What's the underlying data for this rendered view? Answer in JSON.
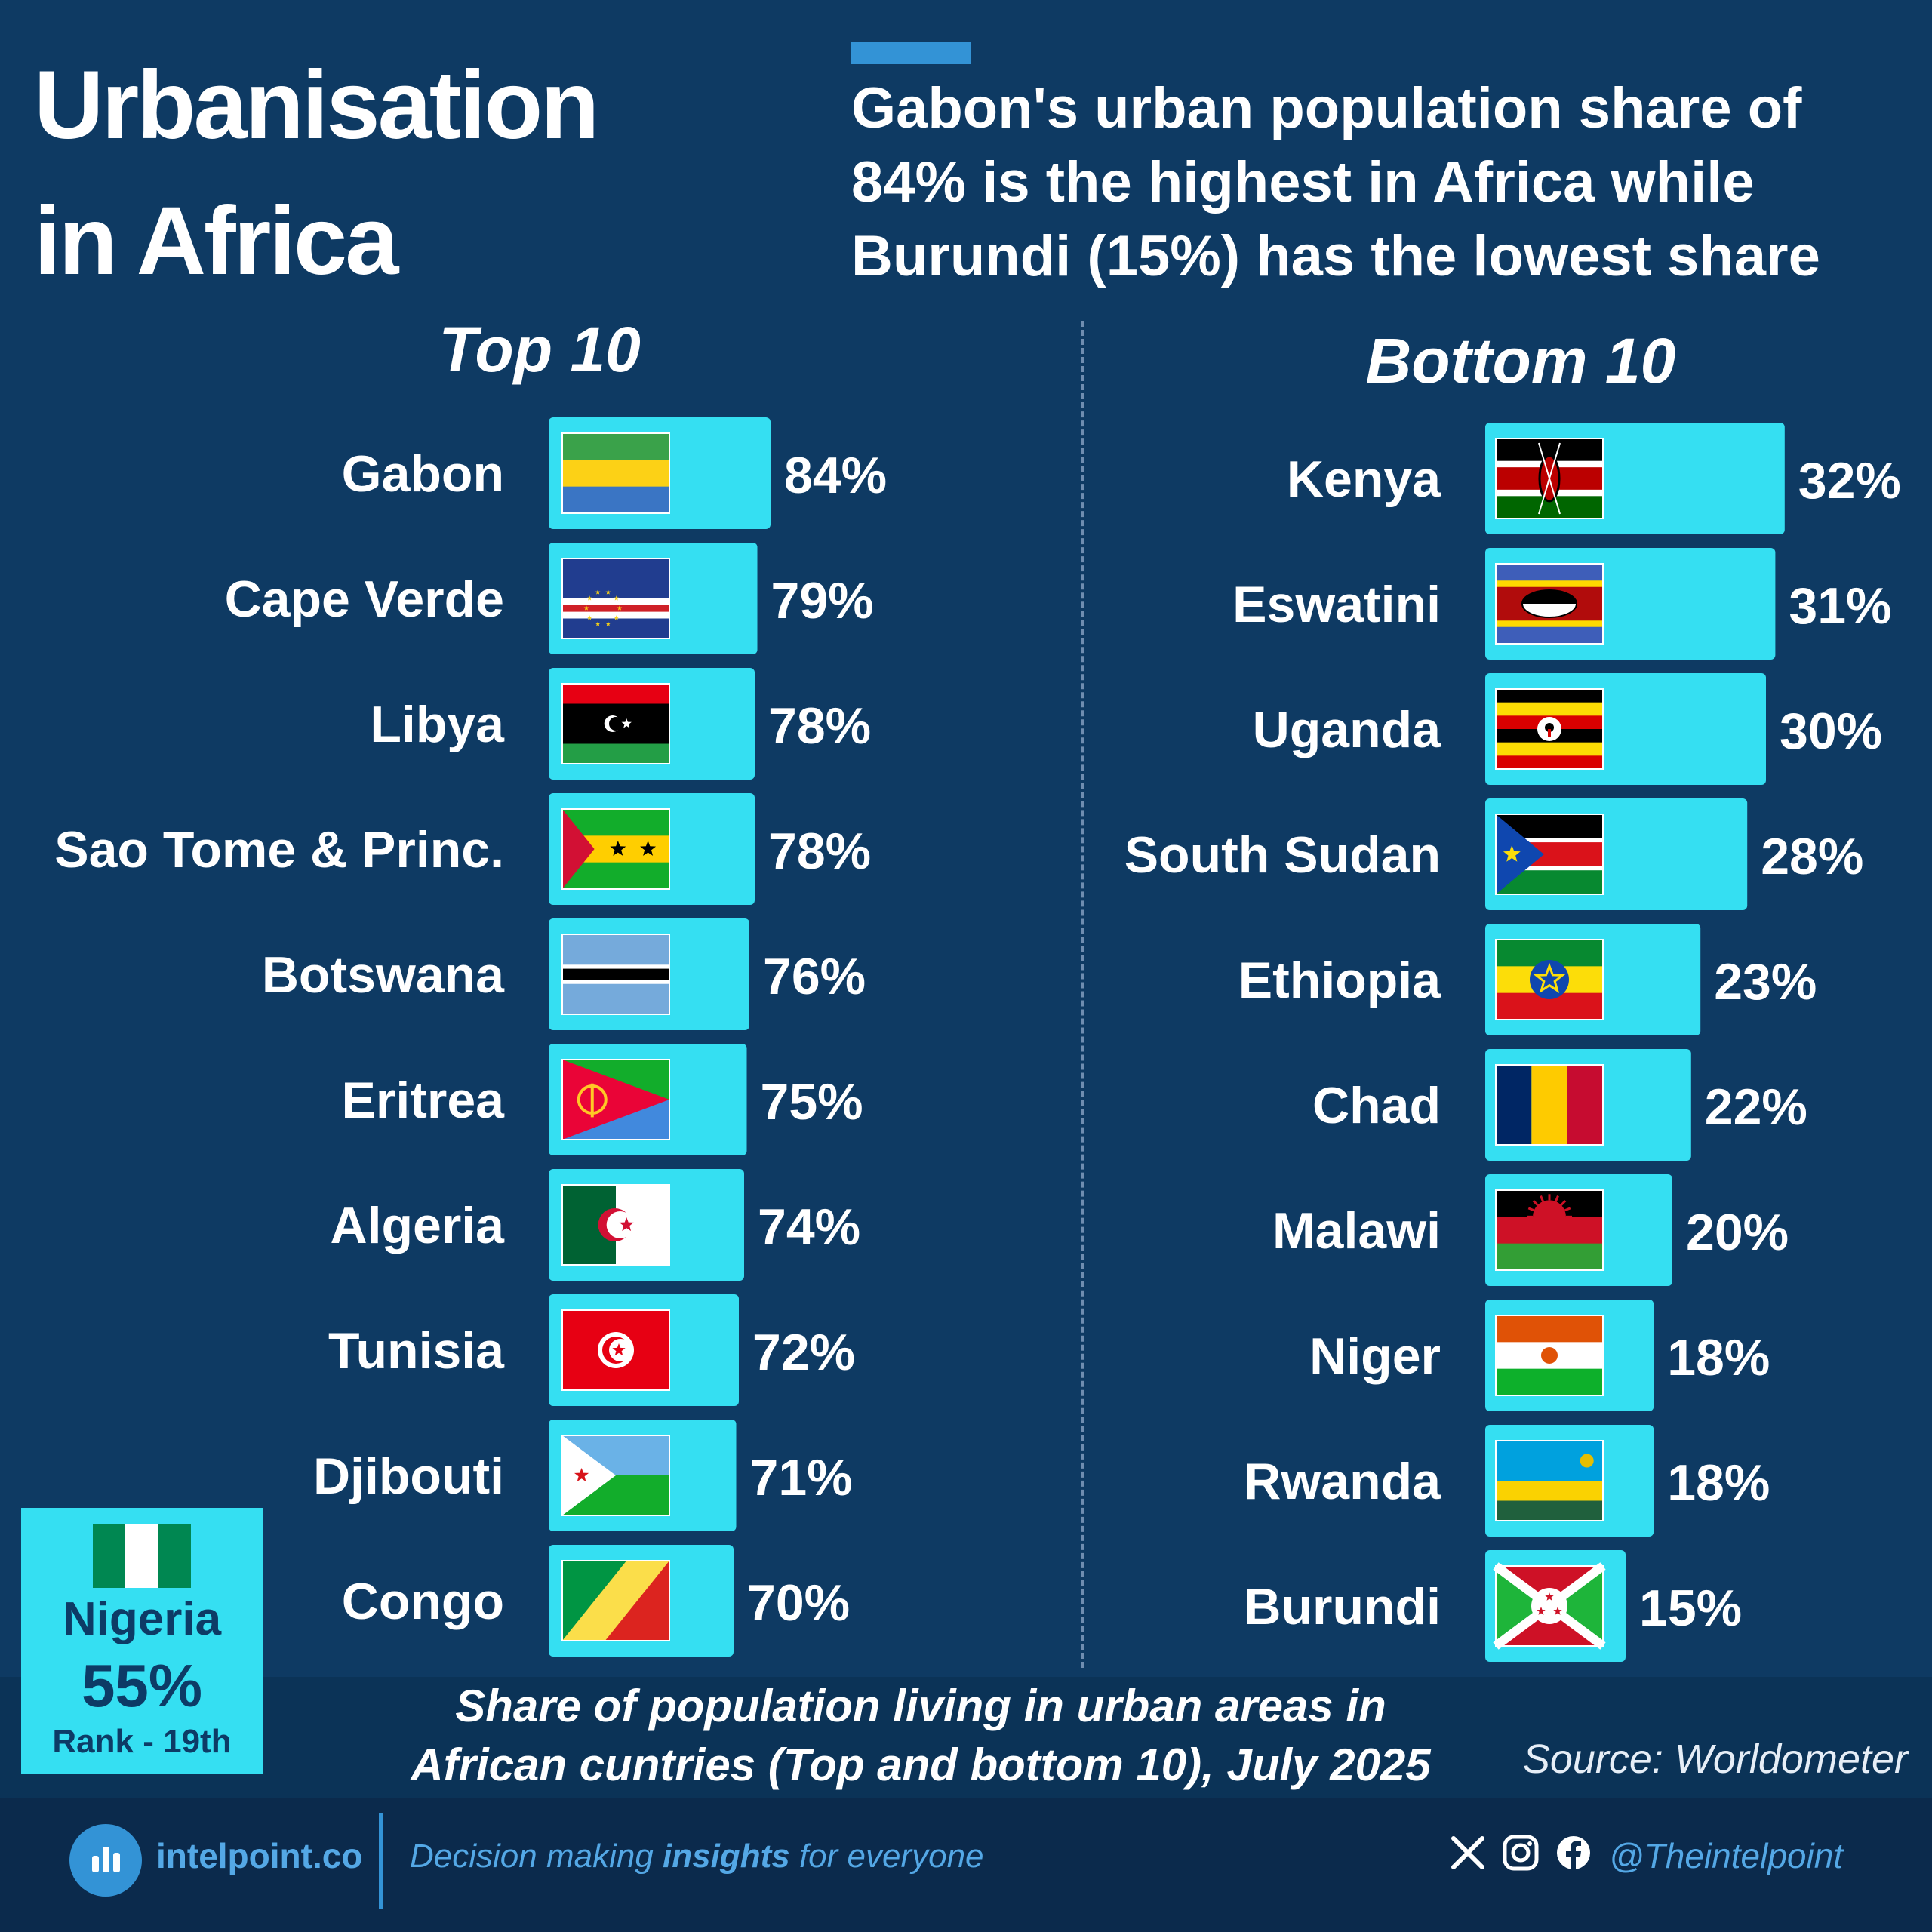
{
  "title_line1": "Urbanisation",
  "title_line2": "in Africa",
  "subtitle": "Gabon's urban population share of 84% is the highest in Africa while Burundi (15%) has the lowest share",
  "colors": {
    "background": "#0e3a63",
    "bar": "#35dff2",
    "accent": "#3393d6",
    "footer": "#0b2a4c"
  },
  "chart_data": [
    {
      "type": "bar",
      "orientation": "horizontal",
      "title": "Top 10",
      "categories": [
        "Gabon",
        "Cape Verde",
        "Libya",
        "Sao Tome & Princ.",
        "Botswana",
        "Eritrea",
        "Algeria",
        "Tunisia",
        "Djibouti",
        "Congo"
      ],
      "values": [
        84,
        79,
        78,
        78,
        76,
        75,
        74,
        72,
        71,
        70
      ],
      "labels": [
        "84%",
        "79%",
        "78%",
        "78%",
        "76%",
        "75%",
        "74%",
        "72%",
        "71%",
        "70%"
      ],
      "flags": [
        "gabon-flag",
        "cape-verde-flag",
        "libya-flag",
        "sao-tome-flag",
        "botswana-flag",
        "eritrea-flag",
        "algeria-flag",
        "tunisia-flag",
        "djibouti-flag",
        "congo-flag"
      ]
    },
    {
      "type": "bar",
      "orientation": "horizontal",
      "title": "Bottom 10",
      "categories": [
        "Kenya",
        "Eswatini",
        "Uganda",
        "South Sudan",
        "Ethiopia",
        "Chad",
        "Malawi",
        "Niger",
        "Rwanda",
        "Burundi"
      ],
      "values": [
        32,
        31,
        30,
        28,
        23,
        22,
        20,
        18,
        18,
        15
      ],
      "labels": [
        "32%",
        "31%",
        "30%",
        "28%",
        "23%",
        "22%",
        "20%",
        "18%",
        "18%",
        "15%"
      ],
      "flags": [
        "kenya-flag",
        "eswatini-flag",
        "uganda-flag",
        "south-sudan-flag",
        "ethiopia-flag",
        "chad-flag",
        "malawi-flag",
        "niger-flag",
        "rwanda-flag",
        "burundi-flag"
      ]
    }
  ],
  "highlight": {
    "country": "Nigeria",
    "value": "55%",
    "rank": "Rank - 19th",
    "flag": "nigeria-flag"
  },
  "caption_line1": "Share of population living in urban areas in",
  "caption_line2": "African cuntries (Top and bottom 10), July 2025",
  "source": "Source: Worldometer",
  "footer": {
    "logo_text": "intelpoint.co",
    "tagline_before": "Decision making ",
    "tagline_bold": "insights",
    "tagline_after": " for everyone",
    "handle": "@Theintelpoint",
    "icons": [
      "x-icon",
      "instagram-icon",
      "facebook-icon"
    ]
  }
}
